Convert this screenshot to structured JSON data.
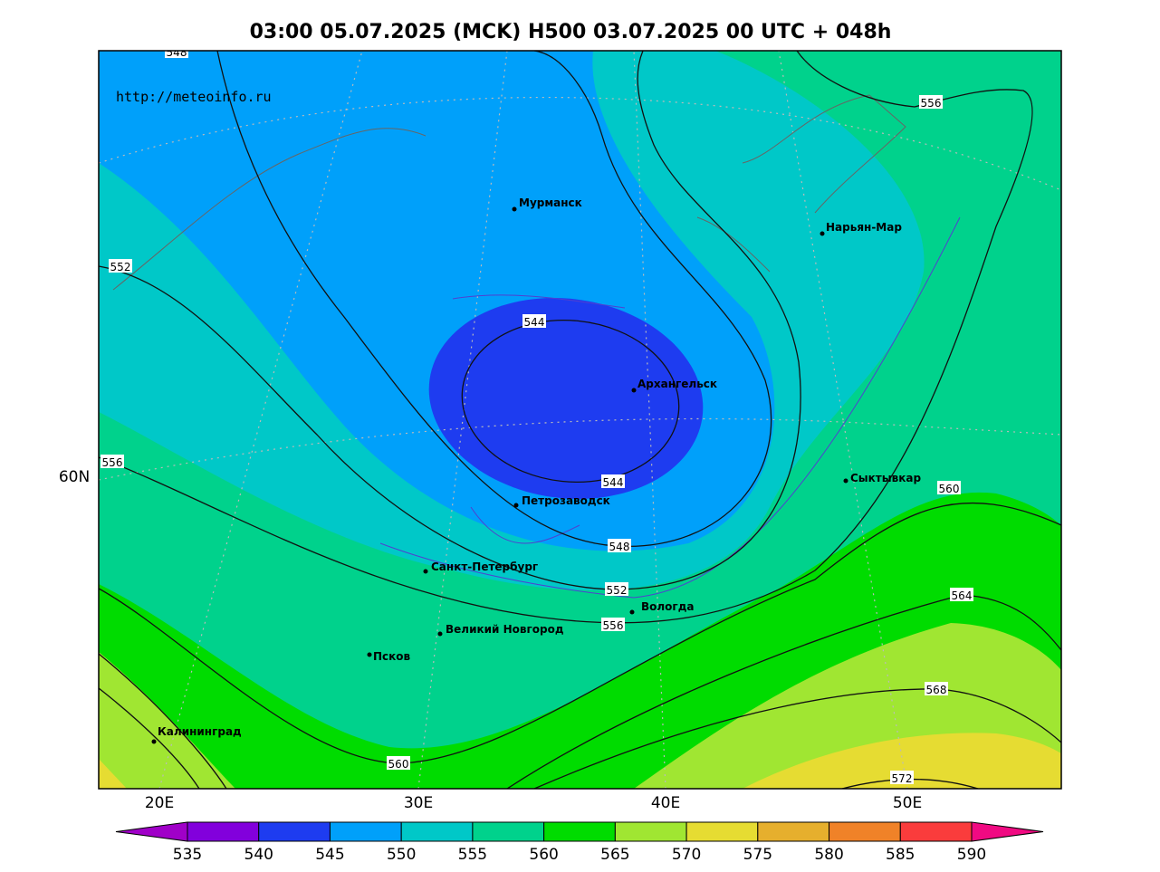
{
  "title": "03:00 05.07.2025 (MCK) H500  03.07.2025 00 UTC + 048h",
  "source": "http://meteoinfo.ru",
  "axes": {
    "x_labels": [
      "20E",
      "30E",
      "40E",
      "50E"
    ],
    "y_labels": [
      "60N"
    ]
  },
  "cities": [
    "Мурманск",
    "Нарьян-Мар",
    "Архангельск",
    "Петрозаводск",
    "Сыктывкар",
    "Санкт-Петербург",
    "Вологда",
    "Великий Новгород",
    "Псков",
    "Калининград"
  ],
  "contour_labels": [
    548,
    552,
    556,
    556,
    544,
    544,
    548,
    552,
    556,
    560,
    560,
    564,
    568,
    572
  ],
  "colorbar": {
    "ticks": [
      535,
      540,
      545,
      550,
      555,
      560,
      565,
      570,
      575,
      580,
      585,
      590
    ],
    "colors": [
      "#a000c8",
      "#8200dc",
      "#1e3cf0",
      "#00a0fa",
      "#00c8c8",
      "#00d28c",
      "#00dc00",
      "#a0e632",
      "#e6dc32",
      "#e6af2d",
      "#f08228",
      "#fa3c3c",
      "#f00a82"
    ]
  }
}
